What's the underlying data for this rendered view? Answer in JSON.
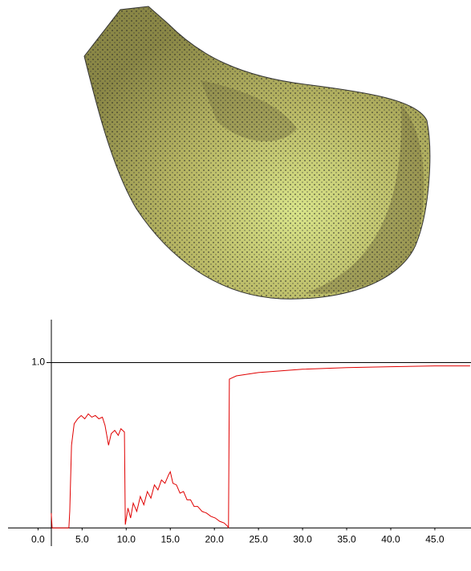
{
  "chart_data": {
    "type": "line",
    "x": [
      1.5,
      1.6,
      3.5,
      3.6,
      3.8,
      4.1,
      4.5,
      4.9,
      5.3,
      5.7,
      6.1,
      6.5,
      6.9,
      7.3,
      7.6,
      8.0,
      8.3,
      8.7,
      9.1,
      9.4,
      9.8,
      9.9,
      10.2,
      10.5,
      10.8,
      11.2,
      11.6,
      12.0,
      12.4,
      12.8,
      13.2,
      13.6,
      14.0,
      14.4,
      14.8,
      15.0,
      15.3,
      15.7,
      16.1,
      16.5,
      16.9,
      17.3,
      17.7,
      18.1,
      18.6,
      19.1,
      19.6,
      20.1,
      20.6,
      21.1,
      21.5,
      21.6,
      21.7,
      22.5,
      25,
      30,
      35,
      40,
      45,
      49
    ],
    "series": [
      {
        "color": "#e00000",
        "values": [
          0.09,
          0,
          0,
          0.1,
          0.5,
          0.63,
          0.66,
          0.68,
          0.66,
          0.69,
          0.67,
          0.68,
          0.66,
          0.67,
          0.62,
          0.5,
          0.57,
          0.59,
          0.56,
          0.6,
          0.58,
          0.02,
          0.12,
          0.06,
          0.15,
          0.1,
          0.19,
          0.14,
          0.22,
          0.18,
          0.26,
          0.23,
          0.29,
          0.27,
          0.32,
          0.34,
          0.27,
          0.26,
          0.21,
          0.22,
          0.17,
          0.17,
          0.13,
          0.13,
          0.1,
          0.09,
          0.07,
          0.06,
          0.04,
          0.03,
          0.01,
          0,
          0.9,
          0.92,
          0.94,
          0.96,
          0.97,
          0.975,
          0.98,
          0.98
        ]
      }
    ],
    "xlim": [
      -3.4,
      49.1
    ],
    "ylim": [
      -0.11,
      1.26
    ],
    "xticks": [
      {
        "value": 0,
        "label": "0.0"
      },
      {
        "value": 5,
        "label": "5.0"
      },
      {
        "value": 10,
        "label": "10.0"
      },
      {
        "value": 15,
        "label": "15.0"
      },
      {
        "value": 20,
        "label": "20.0"
      },
      {
        "value": 25,
        "label": "25.0"
      },
      {
        "value": 30,
        "label": "30.0"
      },
      {
        "value": 35,
        "label": "35.0"
      },
      {
        "value": 40,
        "label": "40.0"
      },
      {
        "value": 45,
        "label": "45.0"
      }
    ],
    "yticks": [
      {
        "value": 1,
        "label": "1.0"
      }
    ],
    "grid": true
  }
}
